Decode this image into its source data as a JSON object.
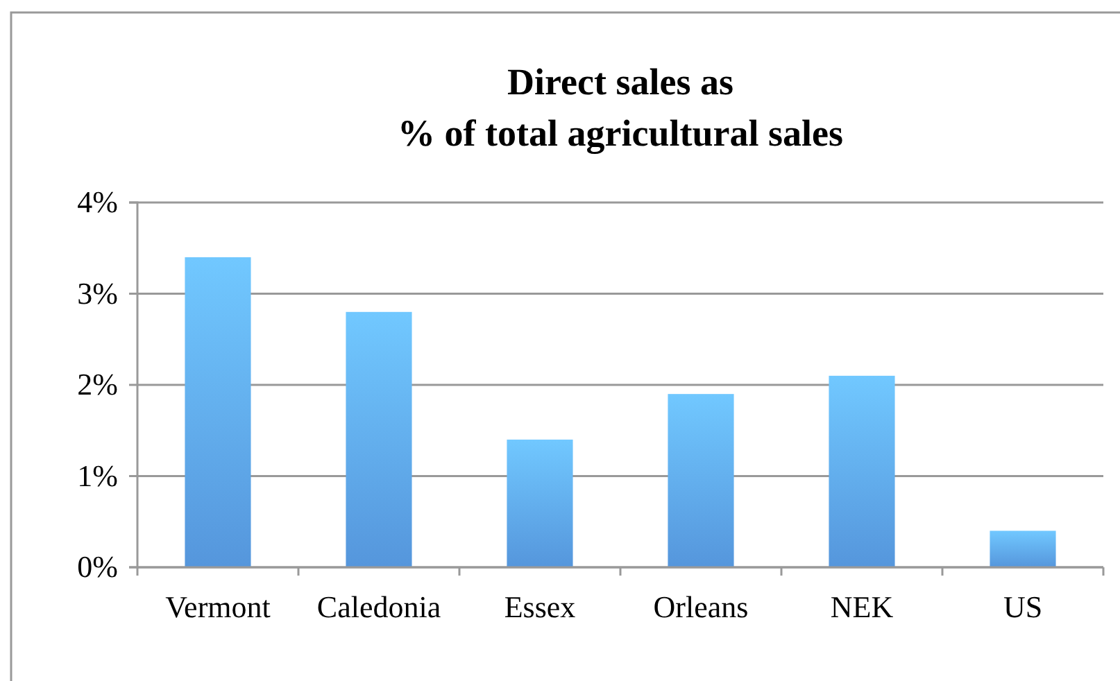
{
  "chart_data": {
    "type": "bar",
    "title": "Direct sales as\n% of total agricultural sales",
    "categories": [
      "Vermont",
      "Caledonia",
      "Essex",
      "Orleans",
      "NEK",
      "US"
    ],
    "values": [
      3.4,
      2.8,
      1.4,
      1.9,
      2.1,
      0.4
    ],
    "color": "#5596dc",
    "ylim": [
      0,
      4
    ],
    "yticks": [
      {
        "value": 0,
        "label": "0%"
      },
      {
        "value": 1,
        "label": "1%"
      },
      {
        "value": 2,
        "label": "2%"
      },
      {
        "value": 3,
        "label": "3%"
      },
      {
        "value": 4,
        "label": "4%"
      }
    ],
    "grid": "y"
  }
}
